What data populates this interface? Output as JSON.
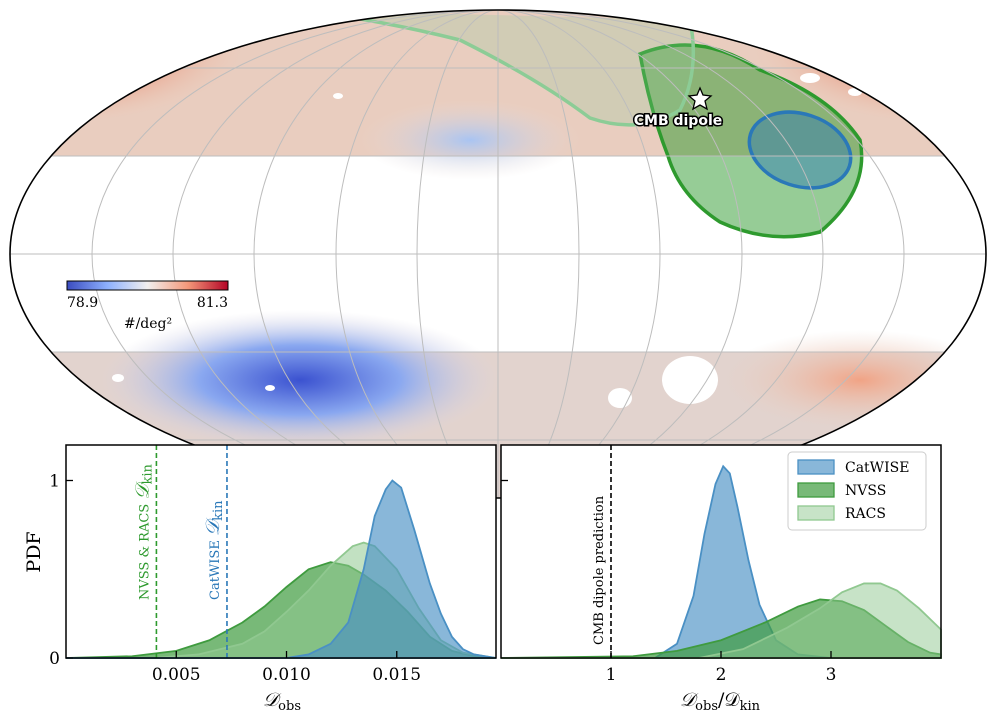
{
  "chart_data": [
    {
      "type": "heatmap",
      "projection": "mollweide",
      "description_visible": "sky map of source density with masked galactic plane",
      "colorbar": {
        "min_label": "78.9",
        "max_label": "81.3",
        "unit_label": "#/deg²",
        "colormap": "coolwarm",
        "vmin": 78.9,
        "vmax": 81.3
      },
      "annotations": [
        {
          "text": "CMB dipole",
          "marker": "star",
          "lon": -96,
          "lat": 48
        }
      ],
      "contours": [
        {
          "name": "CatWISE",
          "color": "#2a78b8"
        },
        {
          "name": "NVSS",
          "color": "#2e9a2e"
        },
        {
          "name": "RACS",
          "color": "#8ccc96"
        }
      ],
      "grid": true
    },
    {
      "type": "area",
      "xlabel": "𝒟obs",
      "xlabel_main": "𝒟",
      "xlabel_sub": "obs",
      "ylabel": "PDF",
      "xlim": [
        0.0,
        0.0195
      ],
      "ylim": [
        0,
        1.2
      ],
      "xticks": [
        0.005,
        0.01,
        0.015
      ],
      "xtick_labels": [
        "0.005",
        "0.010",
        "0.015"
      ],
      "yticks": [
        0,
        1
      ],
      "ytick_labels": [
        "0",
        "1"
      ],
      "series": [
        {
          "name": "NVSS",
          "color": "#3f9b3f",
          "alpha": 0.7,
          "x": [
            0.0,
            0.003,
            0.005,
            0.0065,
            0.008,
            0.009,
            0.01,
            0.011,
            0.012,
            0.0128,
            0.0135,
            0.0145,
            0.0155,
            0.0165,
            0.0175,
            0.0185,
            0.0195
          ],
          "y": [
            0.0,
            0.01,
            0.04,
            0.1,
            0.2,
            0.29,
            0.4,
            0.5,
            0.54,
            0.52,
            0.47,
            0.38,
            0.26,
            0.12,
            0.04,
            0.01,
            0.0
          ]
        },
        {
          "name": "RACS",
          "color": "#90c890",
          "alpha": 0.55,
          "x": [
            0.0,
            0.004,
            0.006,
            0.008,
            0.009,
            0.01,
            0.011,
            0.012,
            0.013,
            0.0135,
            0.014,
            0.015,
            0.016,
            0.017,
            0.018,
            0.019,
            0.0195
          ],
          "y": [
            0.0,
            0.0,
            0.02,
            0.08,
            0.15,
            0.26,
            0.38,
            0.52,
            0.63,
            0.65,
            0.63,
            0.5,
            0.28,
            0.1,
            0.03,
            0.01,
            0.0
          ]
        },
        {
          "name": "CatWISE",
          "color": "#4a90c4",
          "alpha": 0.65,
          "x": [
            0.0,
            0.01,
            0.011,
            0.012,
            0.0128,
            0.0135,
            0.014,
            0.0145,
            0.0148,
            0.0152,
            0.0158,
            0.0165,
            0.017,
            0.0175,
            0.018,
            0.0185,
            0.0195
          ],
          "y": [
            0.0,
            0.0,
            0.02,
            0.08,
            0.2,
            0.5,
            0.8,
            0.95,
            1.0,
            0.96,
            0.72,
            0.42,
            0.25,
            0.12,
            0.05,
            0.02,
            0.0
          ]
        }
      ],
      "annotations": [
        {
          "text": "NVSS & RACS 𝒟kin",
          "main": "NVSS & RACS ",
          "cal": "𝒟",
          "sub": "kin",
          "x": 0.0041,
          "color": "#2e9a2e"
        },
        {
          "text": "CatWISE 𝒟kin",
          "main": "CatWISE ",
          "cal": "𝒟",
          "sub": "kin",
          "x": 0.0073,
          "color": "#2a78b8"
        }
      ]
    },
    {
      "type": "area",
      "xlabel": "𝒟obs/𝒟kin",
      "xlabel_main1": "𝒟",
      "xlabel_sub1": "obs",
      "xlabel_mid": "/𝒟",
      "xlabel_sub2": "kin",
      "ylabel": "",
      "xlim": [
        0.0,
        4.0
      ],
      "ylim": [
        0,
        1.2
      ],
      "xticks": [
        1,
        2,
        3
      ],
      "xtick_labels": [
        "1",
        "2",
        "3"
      ],
      "legend_position": "top-right",
      "series": [
        {
          "name": "CatWISE",
          "color": "#4a90c4",
          "alpha": 0.65,
          "x": [
            0.0,
            1.4,
            1.6,
            1.75,
            1.85,
            1.95,
            2.02,
            2.08,
            2.15,
            2.25,
            2.35,
            2.5,
            2.7,
            3.0,
            4.0
          ],
          "y": [
            0.0,
            0.0,
            0.08,
            0.35,
            0.7,
            0.98,
            1.08,
            1.04,
            0.85,
            0.55,
            0.3,
            0.1,
            0.02,
            0.0,
            0.0
          ]
        },
        {
          "name": "NVSS",
          "color": "#3f9b3f",
          "alpha": 0.7,
          "x": [
            0.0,
            1.2,
            1.6,
            2.0,
            2.4,
            2.7,
            2.9,
            3.1,
            3.3,
            3.5,
            3.7,
            3.9,
            4.0
          ],
          "y": [
            0.0,
            0.01,
            0.04,
            0.1,
            0.2,
            0.29,
            0.33,
            0.32,
            0.27,
            0.18,
            0.09,
            0.03,
            0.02
          ]
        },
        {
          "name": "RACS",
          "color": "#90c890",
          "alpha": 0.5,
          "x": [
            0.0,
            1.8,
            2.2,
            2.6,
            2.9,
            3.1,
            3.3,
            3.45,
            3.6,
            3.8,
            3.95,
            4.0
          ],
          "y": [
            0.0,
            0.0,
            0.05,
            0.17,
            0.28,
            0.37,
            0.42,
            0.42,
            0.38,
            0.28,
            0.19,
            0.16
          ]
        }
      ],
      "annotations": [
        {
          "text": "CMB dipole prediction",
          "x": 1.0,
          "color": "#000000"
        }
      ]
    }
  ]
}
